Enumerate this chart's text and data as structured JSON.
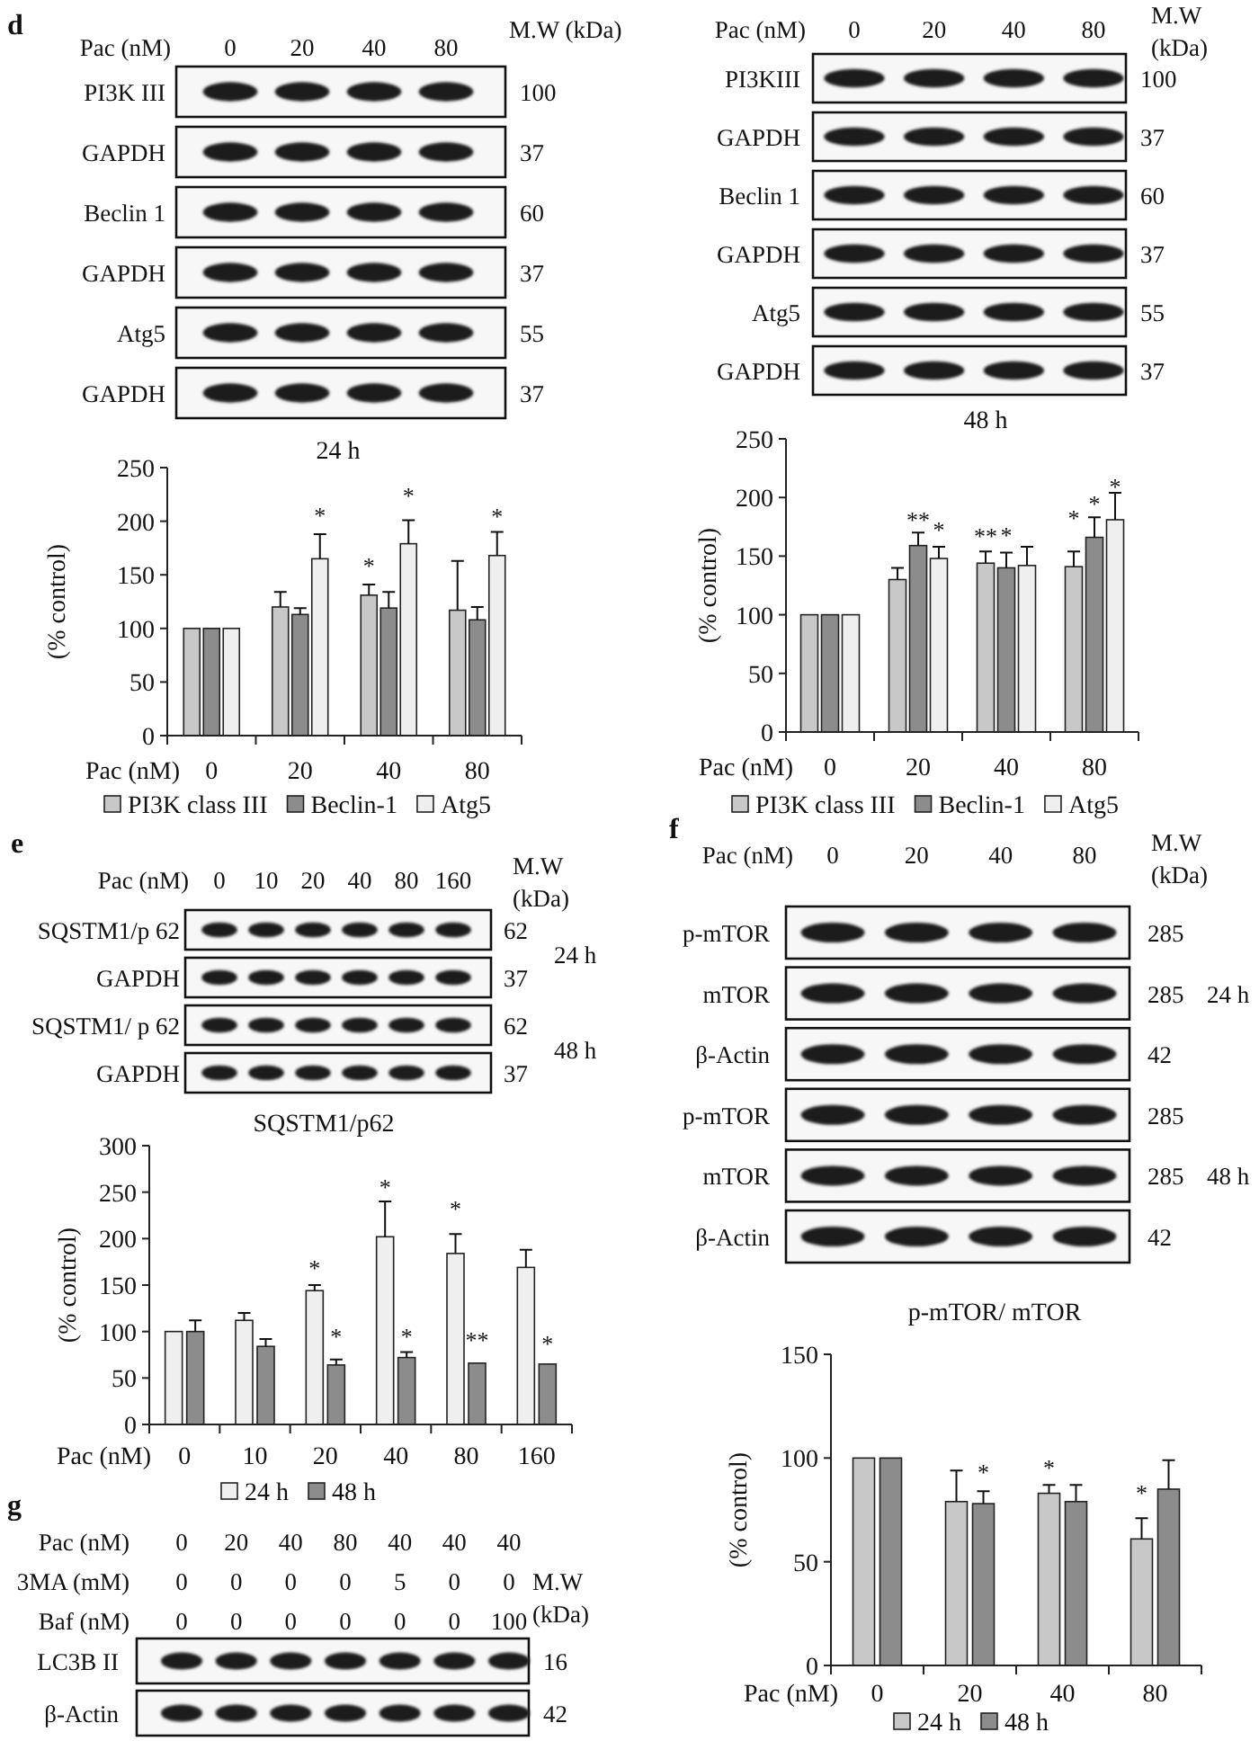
{
  "chart_data": [
    {
      "type": "other",
      "title": "d",
      "xlabel": "Pac (nM)",
      "categories": [
        "0",
        "20",
        "40",
        "80"
      ],
      "y_categories": [
        "PI3K III",
        "GAPDH",
        "Beclin 1",
        "GAPDH",
        "Atg5",
        "GAPDH"
      ],
      "y2_categories": [
        "100",
        "37",
        "60",
        "37",
        "55",
        "37"
      ],
      "y2label": "M.W (kDa)"
    },
    {
      "type": "other",
      "xlabel": "Pac (nM)",
      "categories": [
        "0",
        "20",
        "40",
        "80"
      ],
      "y_categories": [
        "PI3KIII",
        "GAPDH",
        "Beclin 1",
        "GAPDH",
        "Atg5",
        "GAPDH"
      ],
      "y2_categories": [
        "100",
        "37",
        "60",
        "37",
        "55",
        "37"
      ],
      "y2label": "M.W (kDa)"
    },
    {
      "type": "bar",
      "title": "24 h",
      "xlabel": "Pac (nM)",
      "ylabel": "(% control)",
      "categories": [
        "0",
        "20",
        "40",
        "80"
      ],
      "ylim": [
        0,
        250
      ],
      "yticks": [
        0,
        50,
        100,
        150,
        200,
        250
      ],
      "legend": "bottom",
      "series": [
        {
          "name": "PI3K class III",
          "color": "#c8c8c8",
          "values": [
            100,
            120,
            131,
            117
          ],
          "errors": [
            null,
            [
              120,
              134
            ],
            [
              131,
              141
            ],
            [
              117,
              163
            ]
          ]
        },
        {
          "name": "Beclin-1",
          "color": "#8c8c8c",
          "values": [
            100,
            113,
            119,
            108
          ],
          "errors": [
            null,
            [
              113,
              119
            ],
            [
              119,
              134
            ],
            [
              108,
              120
            ]
          ]
        },
        {
          "name": "Atg5",
          "color": "#efefef",
          "values": [
            100,
            165,
            179,
            168
          ],
          "errors": [
            null,
            [
              165,
              188
            ],
            [
              179,
              201
            ],
            [
              168,
              190
            ]
          ]
        }
      ],
      "annotations": [
        "*",
        "*",
        "*",
        "*"
      ]
    },
    {
      "type": "bar",
      "title": "48 h",
      "xlabel": "Pac (nM)",
      "ylabel": "(% control)",
      "categories": [
        "0",
        "20",
        "40",
        "80"
      ],
      "ylim": [
        0,
        250
      ],
      "yticks": [
        0,
        50,
        100,
        150,
        200,
        250
      ],
      "legend": "bottom",
      "series": [
        {
          "name": "PI3K class III",
          "color": "#c8c8c8",
          "values": [
            100,
            130,
            144,
            141
          ],
          "errors": [
            null,
            [
              130,
              140
            ],
            [
              144,
              154
            ],
            [
              141,
              154
            ]
          ]
        },
        {
          "name": "Beclin-1",
          "color": "#8c8c8c",
          "values": [
            100,
            159,
            140,
            166
          ],
          "errors": [
            null,
            [
              159,
              170
            ],
            [
              140,
              153
            ],
            [
              166,
              183
            ]
          ]
        },
        {
          "name": "Atg5",
          "color": "#efefef",
          "values": [
            100,
            148,
            142,
            181
          ],
          "errors": [
            null,
            [
              148,
              158
            ],
            [
              142,
              158
            ],
            [
              181,
              204
            ]
          ]
        }
      ],
      "annotations": [
        "**",
        "*",
        "**",
        "*",
        "*",
        "*",
        "*"
      ]
    },
    {
      "type": "other",
      "title": "e",
      "xlabel": "Pac (nM)",
      "categories": [
        "0",
        "10",
        "20",
        "40",
        "80",
        "160"
      ],
      "y_categories": [
        "SQSTM1/p 62",
        "GAPDH",
        "SQSTM1/ p 62",
        "GAPDH"
      ],
      "y2_categories": [
        "62",
        "37",
        "62",
        "37"
      ],
      "y2label": "M.W (kDa)",
      "annotations": [
        "24 h",
        "48 h"
      ]
    },
    {
      "type": "bar",
      "title": "SQSTM1/p62",
      "xlabel": "Pac (nM)",
      "ylabel": "(% control)",
      "categories": [
        "0",
        "10",
        "20",
        "40",
        "80",
        "160"
      ],
      "ylim": [
        0,
        300
      ],
      "yticks": [
        0,
        50,
        100,
        150,
        200,
        250,
        300
      ],
      "legend": "bottom",
      "series": [
        {
          "name": "24 h",
          "color": "#efefef",
          "values": [
            100,
            112,
            144,
            202,
            184,
            169
          ],
          "errors": [
            null,
            [
              112,
              120
            ],
            [
              144,
              150
            ],
            [
              202,
              240
            ],
            [
              184,
              205
            ],
            [
              169,
              188
            ]
          ]
        },
        {
          "name": "48 h",
          "color": "#8c8c8c",
          "values": [
            100,
            84,
            64,
            72,
            66,
            65
          ],
          "errors": [
            [
              100,
              112
            ],
            [
              84,
              92
            ],
            [
              64,
              70
            ],
            [
              72,
              78
            ],
            null,
            null
          ]
        }
      ],
      "annotations": [
        "*",
        "*",
        "*",
        "*",
        "*",
        "**",
        "*"
      ]
    },
    {
      "type": "other",
      "title": "f",
      "xlabel": "Pac (nM)",
      "categories": [
        "0",
        "20",
        "40",
        "80"
      ],
      "y_categories": [
        "p-mTOR",
        "mTOR",
        "β-Actin",
        "p-mTOR",
        "mTOR",
        "β-Actin"
      ],
      "y2_categories": [
        "285",
        "285",
        "42",
        "285",
        "285",
        "42"
      ],
      "y2label": "M.W (kDa)",
      "annotations": [
        "24 h",
        "48 h"
      ]
    },
    {
      "type": "bar",
      "title": "p-mTOR/ mTOR",
      "xlabel": "Pac (nM)",
      "ylabel": "(% control)",
      "categories": [
        "0",
        "20",
        "40",
        "80"
      ],
      "ylim": [
        0,
        150
      ],
      "yticks": [
        0,
        50,
        100,
        150
      ],
      "legend": "bottom",
      "series": [
        {
          "name": "24 h",
          "color": "#c8c8c8",
          "values": [
            100,
            79,
            83,
            61
          ],
          "errors": [
            null,
            [
              79,
              94
            ],
            [
              83,
              87
            ],
            [
              61,
              71
            ]
          ]
        },
        {
          "name": "48 h",
          "color": "#8c8c8c",
          "values": [
            100,
            78,
            79,
            85
          ],
          "errors": [
            null,
            [
              78,
              84
            ],
            [
              79,
              87
            ],
            [
              85,
              99
            ]
          ]
        }
      ],
      "annotations": [
        "*",
        "*",
        "*"
      ]
    },
    {
      "type": "other",
      "title": "g",
      "xlabel": "Pac (nM)",
      "categories": [
        "0",
        "20",
        "40",
        "80",
        "40",
        "40",
        "40"
      ]
    },
    {
      "type": "other",
      "xlabel": "3MA (mM)",
      "categories": [
        "0",
        "0",
        "0",
        "0",
        "5",
        "0",
        "0"
      ]
    },
    {
      "type": "other",
      "xlabel": "Baf (nM)",
      "categories": [
        "0",
        "0",
        "0",
        "0",
        "0",
        "0",
        "100"
      ],
      "y_categories": [
        "LC3B II",
        "β-Actin"
      ],
      "y2_categories": [
        "16",
        "42"
      ],
      "y2label": "M.W (kDa)"
    }
  ]
}
